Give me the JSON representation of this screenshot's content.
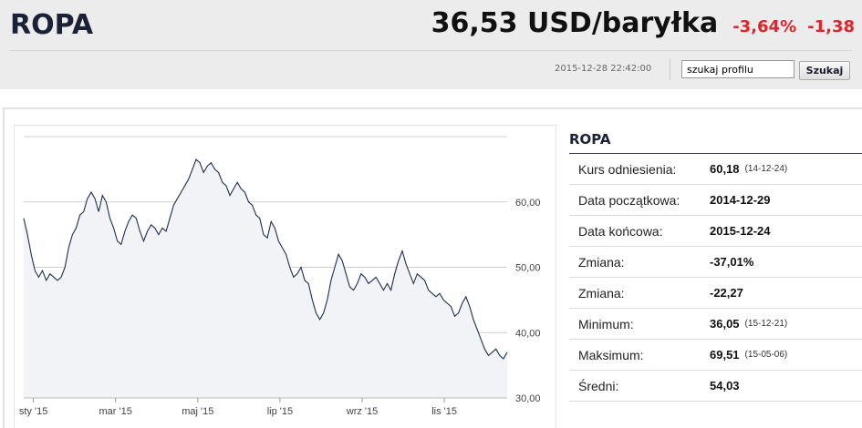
{
  "header": {
    "title": "ROPA",
    "price": "36,53 USD/baryłka",
    "change_pct": "-3,64%",
    "change_abs": "-1,38",
    "timestamp": "2015-12-28 22:42:00",
    "search_value": "szukaj profilu",
    "search_button": "Szukaj",
    "accent_negative": "#e0242b"
  },
  "info": {
    "title": "ROPA",
    "rows": [
      {
        "label": "Kurs odniesienia:",
        "value": "60,18",
        "date": "(14-12-24)"
      },
      {
        "label": "Data początkowa:",
        "value": "2014-12-29",
        "date": ""
      },
      {
        "label": "Data końcowa:",
        "value": "2015-12-24",
        "date": ""
      },
      {
        "label": "Zmiana:",
        "value": "-37,01%",
        "date": ""
      },
      {
        "label": "Zmiana:",
        "value": "-22,27",
        "date": ""
      },
      {
        "label": "Minimum:",
        "value": "36,05",
        "date": "(15-12-21)"
      },
      {
        "label": "Maksimum:",
        "value": "69,51",
        "date": "(15-05-06)"
      },
      {
        "label": "Średni:",
        "value": "54,03",
        "date": ""
      }
    ]
  },
  "chart_data": {
    "type": "area",
    "y_ticks": [
      "60,00",
      "50,00",
      "40,00",
      "30,00"
    ],
    "y_tick_values": [
      60,
      50,
      40,
      30
    ],
    "x_ticks": [
      "sty '15",
      "mar '15",
      "maj '15",
      "lip '15",
      "wrz '15",
      "lis '15"
    ],
    "x_tick_positions": [
      0.02,
      0.19,
      0.36,
      0.53,
      0.7,
      0.87
    ],
    "ylim": [
      30,
      70
    ],
    "grid": true,
    "line_color": "#1f2d4d",
    "fill_color": "#f1f3f6",
    "series": [
      {
        "values": [
          57.5,
          55,
          52,
          49.5,
          48.5,
          49.5,
          48,
          49,
          48.5,
          48,
          48.5,
          50,
          53,
          55,
          56,
          58,
          58.5,
          60.5,
          61.5,
          60.5,
          58.5,
          61,
          60,
          57.5,
          56,
          54,
          53.5,
          55.5,
          57,
          58,
          57.5,
          55.5,
          54,
          55.5,
          56.5,
          56,
          55,
          56,
          55.5,
          57.5,
          59.5,
          60.5,
          61.5,
          62.5,
          63.5,
          65,
          66.5,
          66,
          64.5,
          65.5,
          66,
          65,
          64.5,
          63,
          62.5,
          61,
          62,
          63,
          62,
          61.5,
          60,
          59.5,
          58,
          57.5,
          55,
          54.5,
          57,
          56,
          54,
          53,
          52,
          50,
          48.5,
          49,
          50,
          48,
          47.5,
          45,
          43,
          42,
          43,
          45,
          48,
          50,
          52,
          51,
          49,
          47,
          46.5,
          47.5,
          49,
          48.5,
          47.5,
          48,
          48.5,
          47.5,
          46.5,
          47.5,
          46.5,
          49,
          51,
          52.5,
          50.5,
          49,
          47.5,
          49,
          48.5,
          48,
          46.5,
          46,
          45.5,
          46,
          45,
          44.5,
          44,
          42.5,
          43,
          44.5,
          45.5,
          44,
          42,
          40.5,
          39,
          37.5,
          36.5,
          37,
          37.5,
          36.5,
          36,
          37
        ]
      }
    ]
  }
}
